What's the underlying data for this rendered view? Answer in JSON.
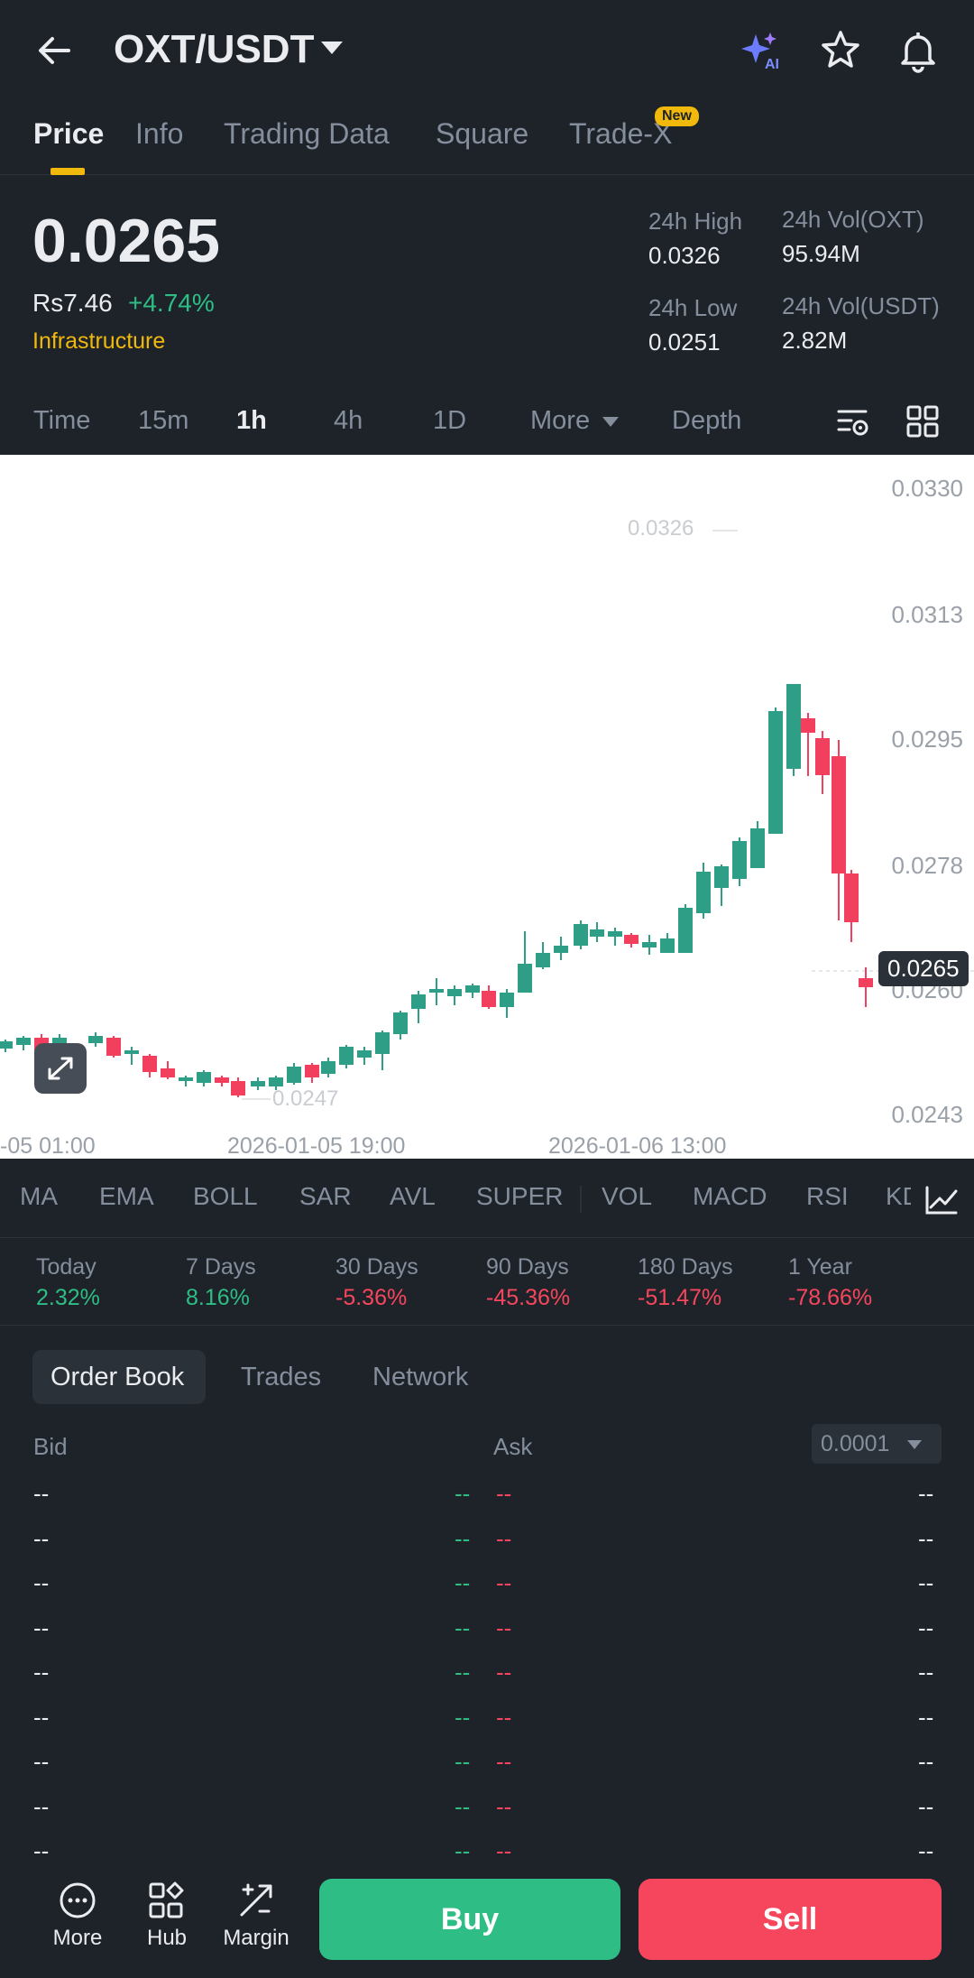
{
  "header": {
    "pair": "OXT/USDT",
    "ai_label": "AI"
  },
  "tabs": [
    {
      "label": "Price"
    },
    {
      "label": "Info"
    },
    {
      "label": "Trading Data"
    },
    {
      "label": "Square"
    },
    {
      "label": "Trade-X"
    }
  ],
  "new_badge": "New",
  "ticker": {
    "price": "0.0265",
    "local_price": "Rs7.46",
    "change": "+4.74%",
    "category": "Infrastructure",
    "high_label": "24h High",
    "high_value": "0.0326",
    "low_label": "24h Low",
    "low_value": "0.0251",
    "vol_base_label": "24h Vol(OXT)",
    "vol_base_value": "95.94M",
    "vol_quote_label": "24h Vol(USDT)",
    "vol_quote_value": "2.82M"
  },
  "intervals": [
    "Time",
    "15m",
    "1h",
    "4h",
    "1D",
    "More",
    "Depth"
  ],
  "chart": {
    "y_labels": [
      "0.0330",
      "0.0313",
      "0.0295",
      "0.0278",
      "0.0260",
      "0.0243"
    ],
    "current_price": "0.0265",
    "high_marker": "0.0326",
    "low_marker": "0.0247",
    "time_labels": [
      "-05 01:00",
      "2026-01-05 19:00",
      "2026-01-06 13:00"
    ],
    "up_color": "#2e9e86",
    "down_color": "#f23f5d"
  },
  "indicators": [
    "MA",
    "EMA",
    "BOLL",
    "SAR",
    "AVL",
    "SUPER",
    "VOL",
    "MACD",
    "RSI",
    "KD"
  ],
  "performance": [
    {
      "label": "Today",
      "value": "2.32%",
      "dir": "up"
    },
    {
      "label": "7 Days",
      "value": "8.16%",
      "dir": "up"
    },
    {
      "label": "30 Days",
      "value": "-5.36%",
      "dir": "down"
    },
    {
      "label": "90 Days",
      "value": "-45.36%",
      "dir": "down"
    },
    {
      "label": "180 Days",
      "value": "-51.47%",
      "dir": "down"
    },
    {
      "label": "1 Year",
      "value": "-78.66%",
      "dir": "down"
    }
  ],
  "orderbook": {
    "tabs": [
      "Order Book",
      "Trades",
      "Network"
    ],
    "bid_label": "Bid",
    "ask_label": "Ask",
    "precision": "0.0001",
    "placeholder": "--"
  },
  "bottom": {
    "more": "More",
    "hub": "Hub",
    "margin": "Margin",
    "buy": "Buy",
    "sell": "Sell"
  },
  "colors": {
    "up": "#2ebd85",
    "down": "#f6465d",
    "accent": "#f0b90b",
    "bg": "#1e2329"
  }
}
